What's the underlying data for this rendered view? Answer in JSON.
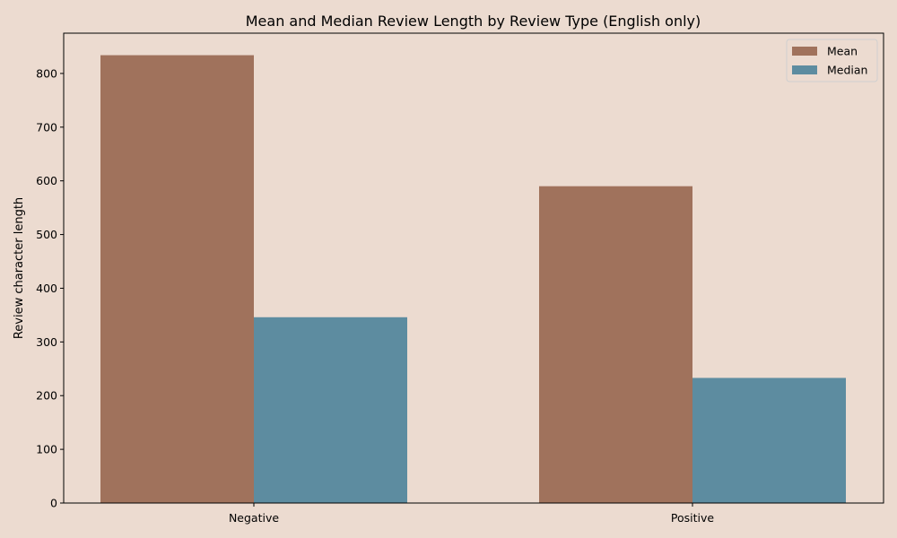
{
  "chart_data": {
    "type": "bar",
    "title": "Mean and Median Review Length by Review Type (English only)",
    "xlabel": "",
    "ylabel": "Review character length",
    "categories": [
      "Negative",
      "Positive"
    ],
    "series": [
      {
        "name": "Mean",
        "values": [
          834,
          590
        ],
        "color": "#a0725c"
      },
      {
        "name": "Median",
        "values": [
          346,
          233
        ],
        "color": "#5d8ca0"
      }
    ],
    "ylim": [
      0,
      875
    ],
    "yticks": [
      0,
      100,
      200,
      300,
      400,
      500,
      600,
      700,
      800
    ],
    "grid": false,
    "legend": "top-right"
  },
  "colors": {
    "background": "#ecdbd0",
    "axes": "#000000"
  }
}
